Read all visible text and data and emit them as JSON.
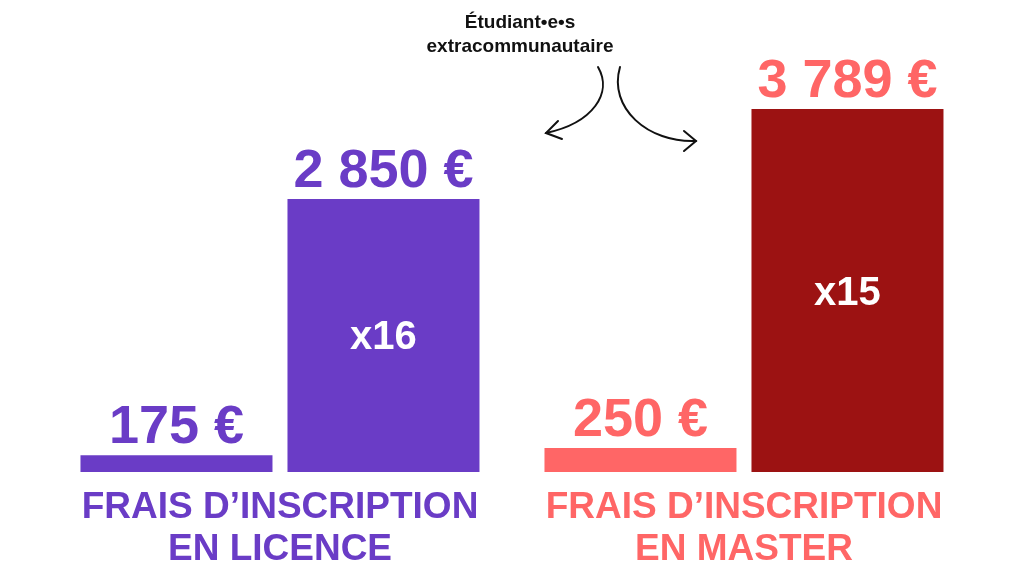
{
  "chart_data": {
    "type": "bar",
    "categories": [
      "FRAIS D’INSCRIPTION EN LICENCE",
      "FRAIS D’INSCRIPTION EN MASTER"
    ],
    "series": [
      {
        "colors": [
          "#6a3cc6",
          "#ff6666"
        ],
        "values": [
          175,
          250
        ],
        "value_labels": [
          "175 €",
          "250 €"
        ]
      },
      {
        "name": "Étudiant•e•s extracommunautaire",
        "colors": [
          "#6a3cc6",
          "#9c1212"
        ],
        "values": [
          2850,
          3789
        ],
        "value_labels": [
          "2 850 €",
          "3 789 €"
        ]
      }
    ],
    "annotations": [
      "x16",
      "x15"
    ]
  }
}
